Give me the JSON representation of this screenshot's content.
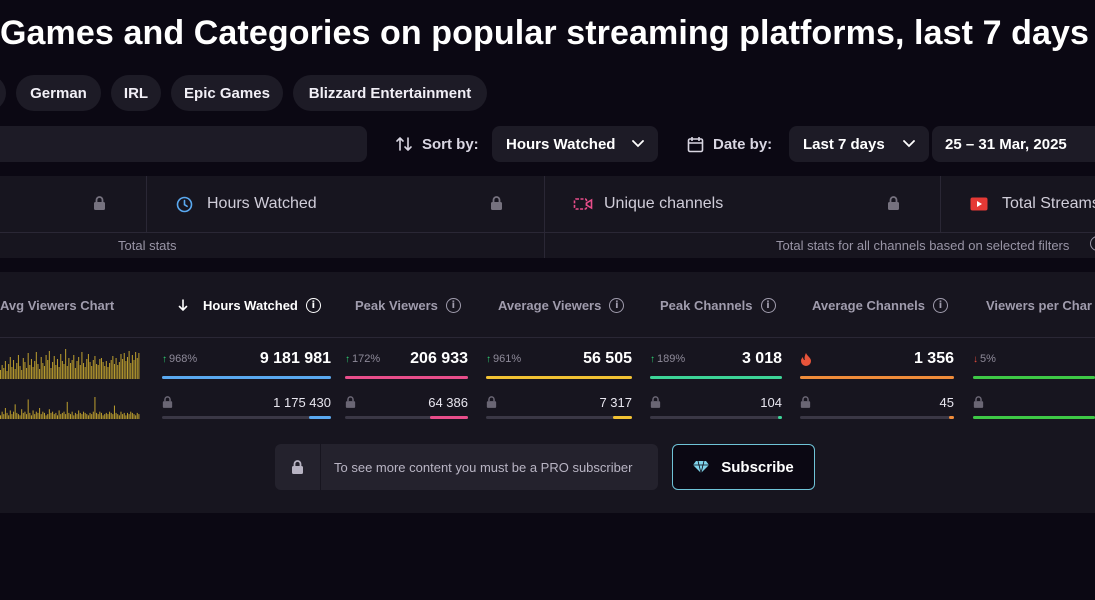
{
  "page": {
    "title": "Games and Categories on popular streaming platforms, last 7 days"
  },
  "chips": [
    "German",
    "IRL",
    "Epic Games",
    "Blizzard Entertainment"
  ],
  "controls": {
    "sort_label": "Sort by:",
    "sort_value": "Hours Watched",
    "date_label": "Date by:",
    "date_value": "Last 7 days",
    "date_range": "25 – 31 Mar, 2025"
  },
  "stats": {
    "hours_watched": "Hours Watched",
    "unique_channels": "Unique channels",
    "total_streams": "Total Streams",
    "footer_left": "Total stats",
    "footer_right": "Total stats for all channels based on selected filters"
  },
  "table": {
    "columns": {
      "chart": "Avg Viewers Chart",
      "hours": "Hours Watched",
      "peak_viewers": "Peak Viewers",
      "avg_viewers": "Average Viewers",
      "peak_channels": "Peak Channels",
      "avg_channels": "Average Channels",
      "viewers_per": "Viewers per Char"
    },
    "rows": [
      {
        "hours": {
          "delta": "968%",
          "value": "9 181 981",
          "fill": 1.0
        },
        "peak_viewers": {
          "delta": "172%",
          "value": "206 933",
          "fill": 1.0
        },
        "avg_viewers": {
          "delta": "961%",
          "value": "56 505",
          "fill": 1.0
        },
        "peak_channels": {
          "delta": "189%",
          "value": "3 018",
          "fill": 1.0
        },
        "avg_channels": {
          "value": "1 356",
          "fill": 1.0
        },
        "viewers_per": {
          "delta": "5%",
          "fill": 1.0
        }
      },
      {
        "hours": {
          "value": "1 175 430",
          "fill": 0.13
        },
        "peak_viewers": {
          "value": "64 386",
          "fill": 0.31
        },
        "avg_viewers": {
          "value": "7 317",
          "fill": 0.13
        },
        "peak_channels": {
          "value": "104",
          "fill": 0.03
        },
        "avg_channels": {
          "value": "45",
          "fill": 0.03
        },
        "viewers_per": {
          "fill": 1.0
        }
      }
    ],
    "sparkline1": [
      9,
      14,
      11,
      18,
      8,
      15,
      22,
      12,
      19,
      10,
      16,
      24,
      13,
      9,
      21,
      17,
      11,
      26,
      14,
      20,
      12,
      18,
      27,
      15,
      10,
      22,
      16,
      13,
      24,
      19,
      28,
      11,
      17,
      23,
      14,
      20,
      12,
      25,
      18,
      15,
      30,
      13,
      21,
      16,
      19,
      24,
      11,
      18,
      22,
      14,
      27,
      16,
      12,
      20,
      25,
      17,
      13,
      19,
      23,
      15,
      14,
      20,
      21,
      17,
      13,
      18,
      12,
      16,
      19,
      23,
      15,
      21,
      14,
      17,
      25,
      20,
      26,
      18,
      22,
      28,
      16,
      24,
      19,
      27,
      21,
      26
    ],
    "sparkline2": [
      3,
      6,
      4,
      9,
      5,
      3,
      7,
      4,
      6,
      12,
      5,
      4,
      3,
      8,
      5,
      6,
      4,
      16,
      5,
      3,
      7,
      4,
      6,
      5,
      9,
      4,
      6,
      5,
      3,
      4,
      8,
      5,
      6,
      4,
      5,
      3,
      7,
      4,
      5,
      6,
      4,
      14,
      5,
      4,
      6,
      3,
      5,
      4,
      7,
      5,
      4,
      6,
      5,
      4,
      3,
      5,
      4,
      6,
      18,
      5,
      4,
      6,
      5,
      3,
      4,
      5,
      4,
      6,
      5,
      4,
      11,
      5,
      4,
      3,
      6,
      4,
      5,
      3,
      5,
      4,
      6,
      5,
      4,
      3,
      5,
      4
    ]
  },
  "colors": {
    "hours": "#5aa9f0",
    "peak_viewers": "#e84d8a",
    "avg_viewers": "#f2c233",
    "peak_channels": "#3dd598",
    "avg_channels": "#f08c3a",
    "viewers_per": "#3ec946",
    "spark": "#b89b2e"
  },
  "pro": {
    "message": "To see more content you must be a PRO subscriber",
    "button": "Subscribe"
  }
}
